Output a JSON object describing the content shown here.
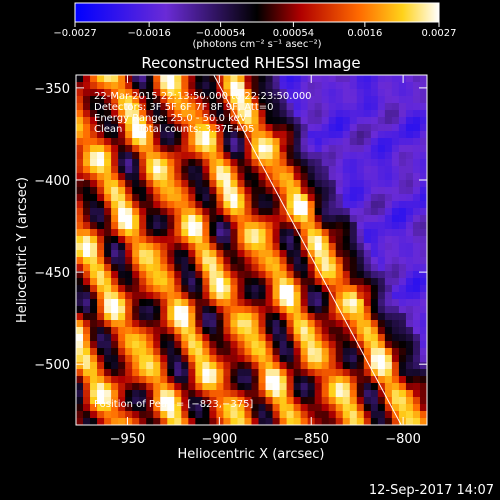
{
  "chart_data": {
    "type": "heatmap",
    "title": "Reconstructed RHESSI Image",
    "xlabel": "Heliocentric X (arcsec)",
    "ylabel": "Heliocentric Y (arcsec)",
    "xlim": [
      -978,
      -787
    ],
    "ylim": [
      -533,
      -343
    ],
    "x_ticks": [
      {
        "value": -950,
        "label": "−950"
      },
      {
        "value": -900,
        "label": "−900"
      },
      {
        "value": -850,
        "label": "−850"
      },
      {
        "value": -800,
        "label": "−800"
      }
    ],
    "y_ticks": [
      {
        "value": -350,
        "label": "−350"
      },
      {
        "value": -400,
        "label": "−400"
      },
      {
        "value": -450,
        "label": "−450"
      },
      {
        "value": -500,
        "label": "−500"
      }
    ],
    "colorbar": {
      "range": [
        -0.0027,
        0.0027
      ],
      "ticks": [
        {
          "value": -0.0027,
          "label": "−0.0027"
        },
        {
          "value": -0.0016,
          "label": "−0.0016"
        },
        {
          "value": -0.00054,
          "label": "−0.00054"
        },
        {
          "value": 0.00054,
          "label": "0.00054"
        },
        {
          "value": 0.0016,
          "label": "0.0016"
        },
        {
          "value": 0.0027,
          "label": "0.0027"
        }
      ],
      "unit_label": "(photons cm⁻² s⁻¹ asec⁻²)",
      "colors": [
        "#0000ff",
        "#6a2bd6",
        "#000000",
        "#b00000",
        "#ff6a00",
        "#ffd21a",
        "#ffffff"
      ]
    },
    "limb_line": {
      "from": {
        "x": -903,
        "y": -343
      },
      "to": {
        "x": -801,
        "y": -533
      }
    },
    "annotations": [
      "22-Mar-2015 22:13:50.000 to 22:23:50.000",
      "Detectors: 3F 5F 6F 7F 8F 9F, Att=0",
      "Energy Range: 25.0 - 50.0 keV",
      "Clean     Total counts: 3.37E+05"
    ],
    "peak_label": "Position of Peak = [−823,−375]",
    "peak": {
      "x": -823,
      "y": -375
    }
  },
  "footer_timestamp": "12-Sep-2017 14:07"
}
